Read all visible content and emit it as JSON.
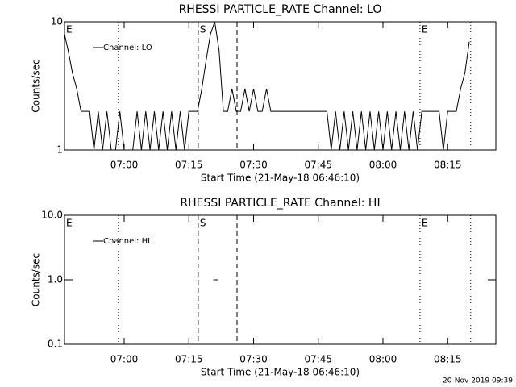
{
  "chart_data": [
    {
      "type": "line",
      "title": "RHESSI PARTICLE_RATE Channel: LO",
      "x_label": "Start Time (21-May-18 06:46:10)",
      "y_label": "Counts/sec",
      "log_y": true,
      "xlim": [
        "06:46:10",
        "08:26:10"
      ],
      "ylim": [
        1,
        10
      ],
      "yticks": [
        1,
        10
      ],
      "xticks": [
        "07:00",
        "07:15",
        "07:30",
        "07:45",
        "08:00",
        "08:15"
      ],
      "annotations": [
        {
          "time": "06:46:10",
          "text": "E"
        },
        {
          "time": "06:58:40",
          "style": "dotted"
        },
        {
          "time": "07:17:10",
          "style": "dashed",
          "text": "S"
        },
        {
          "time": "07:26:10",
          "style": "dashed"
        },
        {
          "time": "08:08:35",
          "style": "dotted",
          "text": "E"
        },
        {
          "time": "08:20:20",
          "style": "dotted"
        }
      ],
      "x": [
        "06:46:10",
        "06:47",
        "06:48",
        "06:49",
        "06:50",
        "06:51",
        "06:52",
        "06:53",
        "06:54",
        "06:55",
        "06:56",
        "06:57",
        "06:58",
        "06:59",
        "07:00",
        "07:01",
        "07:02",
        "07:03",
        "07:04",
        "07:05",
        "07:06",
        "07:07",
        "07:08",
        "07:09",
        "07:10",
        "07:11",
        "07:12",
        "07:13",
        "07:14",
        "07:15",
        "07:16",
        "07:17",
        "07:18",
        "07:19",
        "07:20",
        "07:21",
        "07:22",
        "07:23",
        "07:24",
        "07:25",
        "07:26",
        "07:27",
        "07:28",
        "07:29",
        "07:30",
        "07:31",
        "07:32",
        "07:33",
        "07:34",
        "07:35",
        "07:36",
        "07:37",
        "07:38",
        "07:39",
        "07:40",
        "07:41",
        "07:42",
        "07:43",
        "07:44",
        "07:45",
        "07:46",
        "07:47",
        "07:48",
        "07:49",
        "07:50",
        "07:51",
        "07:52",
        "07:53",
        "07:54",
        "07:55",
        "07:56",
        "07:57",
        "07:58",
        "07:59",
        "08:00",
        "08:01",
        "08:02",
        "08:03",
        "08:04",
        "08:05",
        "08:06",
        "08:07",
        "08:08",
        "08:09",
        "08:10",
        "08:11",
        "08:12",
        "08:13",
        "08:14",
        "08:15",
        "08:16",
        "08:17",
        "08:18",
        "08:19",
        "08:20"
      ],
      "series": [
        {
          "name": "Channel: LO",
          "color": "#000000",
          "values": [
            8,
            6,
            4,
            3,
            2,
            2,
            2,
            1,
            2,
            1,
            2,
            1,
            1,
            2,
            1,
            1,
            1,
            2,
            1,
            2,
            1,
            2,
            1,
            2,
            1,
            2,
            1,
            2,
            1,
            2,
            2,
            2,
            3,
            5,
            8,
            10,
            6,
            2,
            2,
            3,
            2,
            2,
            3,
            2,
            3,
            2,
            2,
            3,
            2,
            2,
            2,
            2,
            2,
            2,
            2,
            2,
            2,
            2,
            2,
            2,
            2,
            2,
            1,
            2,
            1,
            2,
            1,
            2,
            1,
            2,
            1,
            2,
            1,
            2,
            1,
            2,
            1,
            2,
            1,
            2,
            1,
            2,
            1,
            2,
            2,
            2,
            2,
            2,
            1,
            2,
            2,
            2,
            3,
            4,
            7
          ]
        }
      ]
    },
    {
      "type": "line",
      "title": "RHESSI PARTICLE_RATE Channel: HI",
      "x_label": "Start Time (21-May-18 06:46:10)",
      "y_label": "Counts/sec",
      "log_y": true,
      "xlim": [
        "06:46:10",
        "08:26:10"
      ],
      "ylim": [
        0.1,
        10
      ],
      "yticks": [
        0.1,
        {
          "value": 1,
          "label": "1.0"
        },
        {
          "value": 10,
          "label": "10.0"
        }
      ],
      "xticks": [
        "07:00",
        "07:15",
        "07:30",
        "07:45",
        "08:00",
        "08:15"
      ],
      "annotations": [
        {
          "time": "06:46:10",
          "text": "E"
        },
        {
          "time": "06:58:40",
          "style": "dotted"
        },
        {
          "time": "07:17:10",
          "style": "dashed",
          "text": "S"
        },
        {
          "time": "07:26:10",
          "style": "dashed"
        },
        {
          "time": "08:08:35",
          "style": "dotted",
          "text": "E"
        },
        {
          "time": "08:20:20",
          "style": "dotted"
        }
      ],
      "x": [
        "07:20:40",
        "07:21:40"
      ],
      "series": [
        {
          "name": "Channel: HI",
          "color": "#000000",
          "values": [
            1,
            1
          ]
        }
      ]
    }
  ],
  "footer": "20-Nov-2019 09:39"
}
